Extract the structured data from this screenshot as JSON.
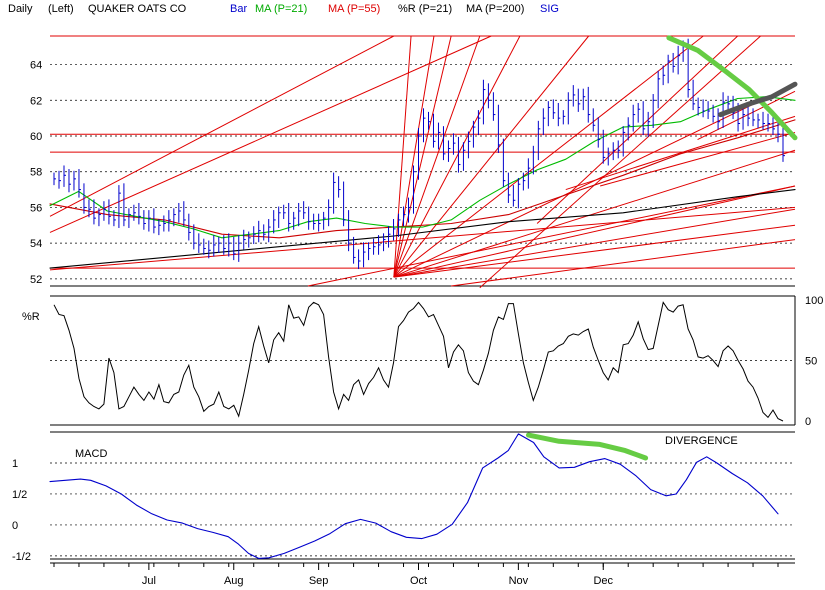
{
  "header": {
    "period": "Daily",
    "scale": "(Left)",
    "title": "QUAKER OATS CO",
    "legend": [
      {
        "label": "Bar",
        "color": "#0000cc"
      },
      {
        "label": "MA (P=21)",
        "color": "#00aa00"
      },
      {
        "label": "MA (P=55)",
        "color": "#dd0000"
      },
      {
        "label": "%R (P=21)",
        "color": "#000000"
      },
      {
        "label": "MA (P=200)",
        "color": "#000000"
      },
      {
        "label": "SIG",
        "color": "#0000cc"
      }
    ]
  },
  "months": [
    "Jul",
    "Aug",
    "Sep",
    "Oct",
    "Nov",
    "Dec"
  ],
  "chart_data": [
    {
      "type": "bar",
      "name": "price",
      "x_range": [
        0,
        130
      ],
      "ylim": [
        51.6,
        65.6
      ],
      "yticks": [
        52,
        54,
        56,
        58,
        60,
        62,
        64
      ],
      "month_ticks": [
        19,
        36,
        53,
        73,
        93,
        110
      ],
      "price": [
        57.6,
        57.5,
        57.8,
        57.3,
        57.6,
        57.0,
        56.0,
        55.9,
        55.4,
        55.6,
        55.9,
        55.5,
        55.3,
        56.8,
        55.3,
        55.6,
        55.7,
        55.5,
        55.1,
        55.4,
        54.9,
        55.0,
        55.1,
        55.3,
        55.6,
        55.8,
        55.3,
        54.6,
        54.0,
        53.9,
        53.7,
        53.6,
        53.9,
        54.0,
        53.7,
        54.0,
        53.4,
        54.0,
        54.2,
        54.3,
        54.5,
        54.7,
        54.5,
        54.9,
        55.3,
        55.7,
        55.7,
        55.1,
        55.4,
        55.8,
        55.7,
        55.2,
        55.1,
        55.1,
        55.4,
        56.0,
        57.4,
        57.0,
        55.3,
        54.0,
        53.2,
        53.0,
        53.5,
        53.7,
        53.8,
        53.9,
        54.2,
        54.5,
        54.8,
        55.3,
        55.6,
        56.0,
        58.0,
        60.0,
        61.0,
        60.8,
        59.7,
        60.2,
        59.0,
        59.3,
        59.6,
        58.4,
        59.2,
        59.7,
        60.5,
        61.0,
        62.6,
        62.0,
        61.2,
        59.5,
        57.5,
        56.7,
        56.4,
        57.3,
        57.5,
        58.2,
        59.1,
        60.4,
        61.0,
        61.6,
        61.3,
        61.0,
        61.1,
        62.0,
        62.3,
        61.8,
        62.2,
        61.2,
        60.6,
        59.8,
        58.8,
        59.0,
        59.2,
        59.2,
        60.2,
        60.6,
        61.2,
        61.5,
        60.4,
        60.8,
        62.0,
        63.2,
        63.4,
        64.2,
        63.9,
        64.5,
        65.0,
        62.6,
        61.8,
        61.6,
        61.4,
        61.4,
        61.1,
        60.8,
        61.9,
        61.8,
        61.3,
        60.7,
        61.2,
        61.0,
        60.9,
        60.9,
        60.7,
        60.7,
        60.4,
        60.1,
        58.9
      ],
      "ma21": [
        [
          0,
          56.1
        ],
        [
          5,
          56.9
        ],
        [
          10,
          55.8
        ],
        [
          15,
          55.5
        ],
        [
          20,
          55.2
        ],
        [
          25,
          54.8
        ],
        [
          30,
          54.3
        ],
        [
          35,
          54.5
        ],
        [
          40,
          54.7
        ],
        [
          45,
          55.2
        ],
        [
          50,
          55.4
        ],
        [
          55,
          55.1
        ],
        [
          60,
          54.9
        ],
        [
          65,
          54.9
        ],
        [
          70,
          55.3
        ],
        [
          75,
          56.4
        ],
        [
          80,
          57.3
        ],
        [
          85,
          58.1
        ],
        [
          90,
          58.7
        ],
        [
          95,
          59.7
        ],
        [
          100,
          60.5
        ],
        [
          105,
          60.6
        ],
        [
          110,
          60.8
        ],
        [
          115,
          61.5
        ],
        [
          120,
          62.1
        ],
        [
          125,
          62.2
        ],
        [
          130,
          62.0
        ]
      ],
      "ma55": [
        [
          0,
          56.2
        ],
        [
          10,
          55.6
        ],
        [
          20,
          55.3
        ],
        [
          30,
          54.5
        ],
        [
          40,
          54.3
        ],
        [
          50,
          54.7
        ],
        [
          60,
          54.9
        ],
        [
          70,
          55.1
        ],
        [
          80,
          55.6
        ],
        [
          90,
          56.7
        ],
        [
          100,
          57.8
        ],
        [
          110,
          59.0
        ],
        [
          120,
          59.9
        ],
        [
          130,
          60.9
        ]
      ],
      "ma200": [
        [
          0,
          52.6
        ],
        [
          20,
          53.2
        ],
        [
          40,
          53.8
        ],
        [
          60,
          54.4
        ],
        [
          80,
          55.2
        ],
        [
          100,
          55.7
        ],
        [
          120,
          56.6
        ],
        [
          130,
          57.0
        ]
      ],
      "horizontal_lines": [
        52.6,
        59.1,
        60.1,
        65.6
      ],
      "trend_lines": [
        [
          [
            0,
            55.5
          ],
          [
            60,
            65.6
          ]
        ],
        [
          [
            0,
            54.6
          ],
          [
            77,
            65.6
          ]
        ],
        [
          [
            0,
            52.5
          ],
          [
            130,
            56.0
          ]
        ],
        [
          [
            45,
            51.6
          ],
          [
            130,
            57.2
          ]
        ],
        [
          [
            70,
            51.6
          ],
          [
            130,
            54.2
          ]
        ],
        [
          [
            85,
            55.1
          ],
          [
            120,
            65.6
          ]
        ],
        [
          [
            90,
            57.0
          ],
          [
            130,
            61.1
          ]
        ],
        [
          [
            96,
            57.2
          ],
          [
            130,
            60.2
          ]
        ],
        [
          [
            113,
            59.8
          ],
          [
            130,
            62.5
          ]
        ],
        [
          [
            75,
            51.5
          ],
          [
            124,
            65.6
          ]
        ]
      ],
      "fan_origin": [
        60,
        52.1
      ],
      "fan_targets": [
        [
          [
            63,
            65.6
          ]
        ],
        [
          [
            67,
            65.6
          ]
        ],
        [
          [
            70,
            65.6
          ]
        ],
        [
          [
            75,
            65.6
          ]
        ],
        [
          [
            82,
            65.6
          ]
        ],
        [
          [
            94,
            65.6
          ]
        ],
        [
          [
            114,
            65.6
          ]
        ],
        [
          [
            130,
            62.9
          ]
        ],
        [
          [
            130,
            59.2
          ]
        ],
        [
          [
            130,
            57.2
          ]
        ],
        [
          [
            130,
            55.9
          ]
        ],
        [
          [
            130,
            55.0
          ]
        ]
      ],
      "green_highlight": [
        [
          108,
          65.5
        ],
        [
          113,
          64.8
        ],
        [
          118,
          63.6
        ],
        [
          122,
          62.6
        ],
        [
          126,
          61.3
        ],
        [
          130,
          59.9
        ]
      ],
      "gray_highlight": [
        [
          117,
          61.2
        ],
        [
          122,
          61.8
        ],
        [
          126,
          62.2
        ],
        [
          130,
          62.9
        ]
      ]
    },
    {
      "type": "line",
      "name": "%R (P=21)",
      "ylabel": "%R",
      "ylim": [
        0,
        100
      ],
      "yticks": [
        0,
        50,
        100
      ],
      "values": [
        96,
        88,
        87,
        75,
        60,
        35,
        20,
        15,
        12,
        10,
        14,
        52,
        40,
        10,
        12,
        20,
        28,
        22,
        17,
        24,
        18,
        30,
        16,
        15,
        22,
        24,
        38,
        46,
        28,
        20,
        8,
        12,
        14,
        24,
        12,
        10,
        13,
        4,
        22,
        42,
        64,
        78,
        62,
        48,
        67,
        73,
        66,
        96,
        85,
        86,
        79,
        94,
        98,
        96,
        88,
        53,
        24,
        10,
        22,
        17,
        30,
        34,
        22,
        31,
        36,
        44,
        34,
        28,
        48,
        78,
        83,
        90,
        93,
        98,
        93,
        86,
        88,
        79,
        70,
        44,
        57,
        63,
        58,
        40,
        33,
        30,
        42,
        56,
        75,
        86,
        84,
        97,
        97,
        72,
        48,
        32,
        17,
        28,
        42,
        57,
        58,
        62,
        64,
        70,
        72,
        71,
        74,
        76,
        61,
        50,
        40,
        34,
        44,
        40,
        63,
        64,
        71,
        82,
        68,
        59,
        60,
        79,
        98,
        92,
        90,
        95,
        96,
        76,
        67,
        53,
        52,
        54,
        50,
        45,
        58,
        62,
        58,
        50,
        43,
        33,
        28,
        19,
        7,
        3,
        9,
        2,
        0
      ]
    },
    {
      "type": "line",
      "name": "MACD",
      "ylabel": "MACD",
      "ylim": [
        -0.55,
        1.5
      ],
      "yticks": [
        -0.5,
        0,
        0.5,
        1
      ],
      "ytick_labels": [
        "-1/2",
        "0",
        "1/2",
        "1"
      ],
      "series": [
        {
          "values_xy": [
            [
              0,
              0.7
            ],
            [
              3,
              0.72
            ],
            [
              6,
              0.74
            ],
            [
              8,
              0.72
            ],
            [
              11,
              0.63
            ],
            [
              14,
              0.5
            ],
            [
              17,
              0.32
            ],
            [
              20,
              0.18
            ],
            [
              23,
              0.08
            ],
            [
              26,
              0.03
            ],
            [
              29,
              -0.06
            ],
            [
              32,
              -0.12
            ],
            [
              35,
              -0.19
            ],
            [
              37,
              -0.31
            ],
            [
              39,
              -0.46
            ],
            [
              41,
              -0.54
            ],
            [
              43,
              -0.53
            ],
            [
              46,
              -0.46
            ],
            [
              49,
              -0.36
            ],
            [
              52,
              -0.26
            ],
            [
              55,
              -0.14
            ],
            [
              58,
              0.02
            ],
            [
              61,
              0.09
            ],
            [
              64,
              0.03
            ],
            [
              67,
              -0.11
            ],
            [
              70,
              -0.2
            ],
            [
              73,
              -0.22
            ],
            [
              76,
              -0.15
            ],
            [
              79,
              0.01
            ],
            [
              82,
              0.36
            ],
            [
              85,
              0.92
            ],
            [
              88,
              1.08
            ],
            [
              90,
              1.2
            ],
            [
              92,
              1.47
            ],
            [
              95,
              1.33
            ],
            [
              97,
              1.1
            ],
            [
              100,
              0.92
            ],
            [
              103,
              0.93
            ],
            [
              106,
              1.02
            ],
            [
              109,
              1.07
            ],
            [
              112,
              0.98
            ],
            [
              115,
              0.8
            ],
            [
              118,
              0.57
            ],
            [
              121,
              0.47
            ],
            [
              123,
              0.5
            ],
            [
              125,
              0.73
            ],
            [
              127,
              1.01
            ],
            [
              129,
              1.1
            ],
            [
              131,
              1.0
            ],
            [
              134,
              0.83
            ],
            [
              137,
              0.68
            ],
            [
              140,
              0.47
            ],
            [
              143,
              0.18
            ]
          ]
        }
      ],
      "green_highlight": [
        [
          94,
          1.45
        ],
        [
          100,
          1.35
        ],
        [
          108,
          1.3
        ],
        [
          113,
          1.2
        ],
        [
          117,
          1.08
        ]
      ],
      "annotation": "DIVERGENCE"
    }
  ]
}
